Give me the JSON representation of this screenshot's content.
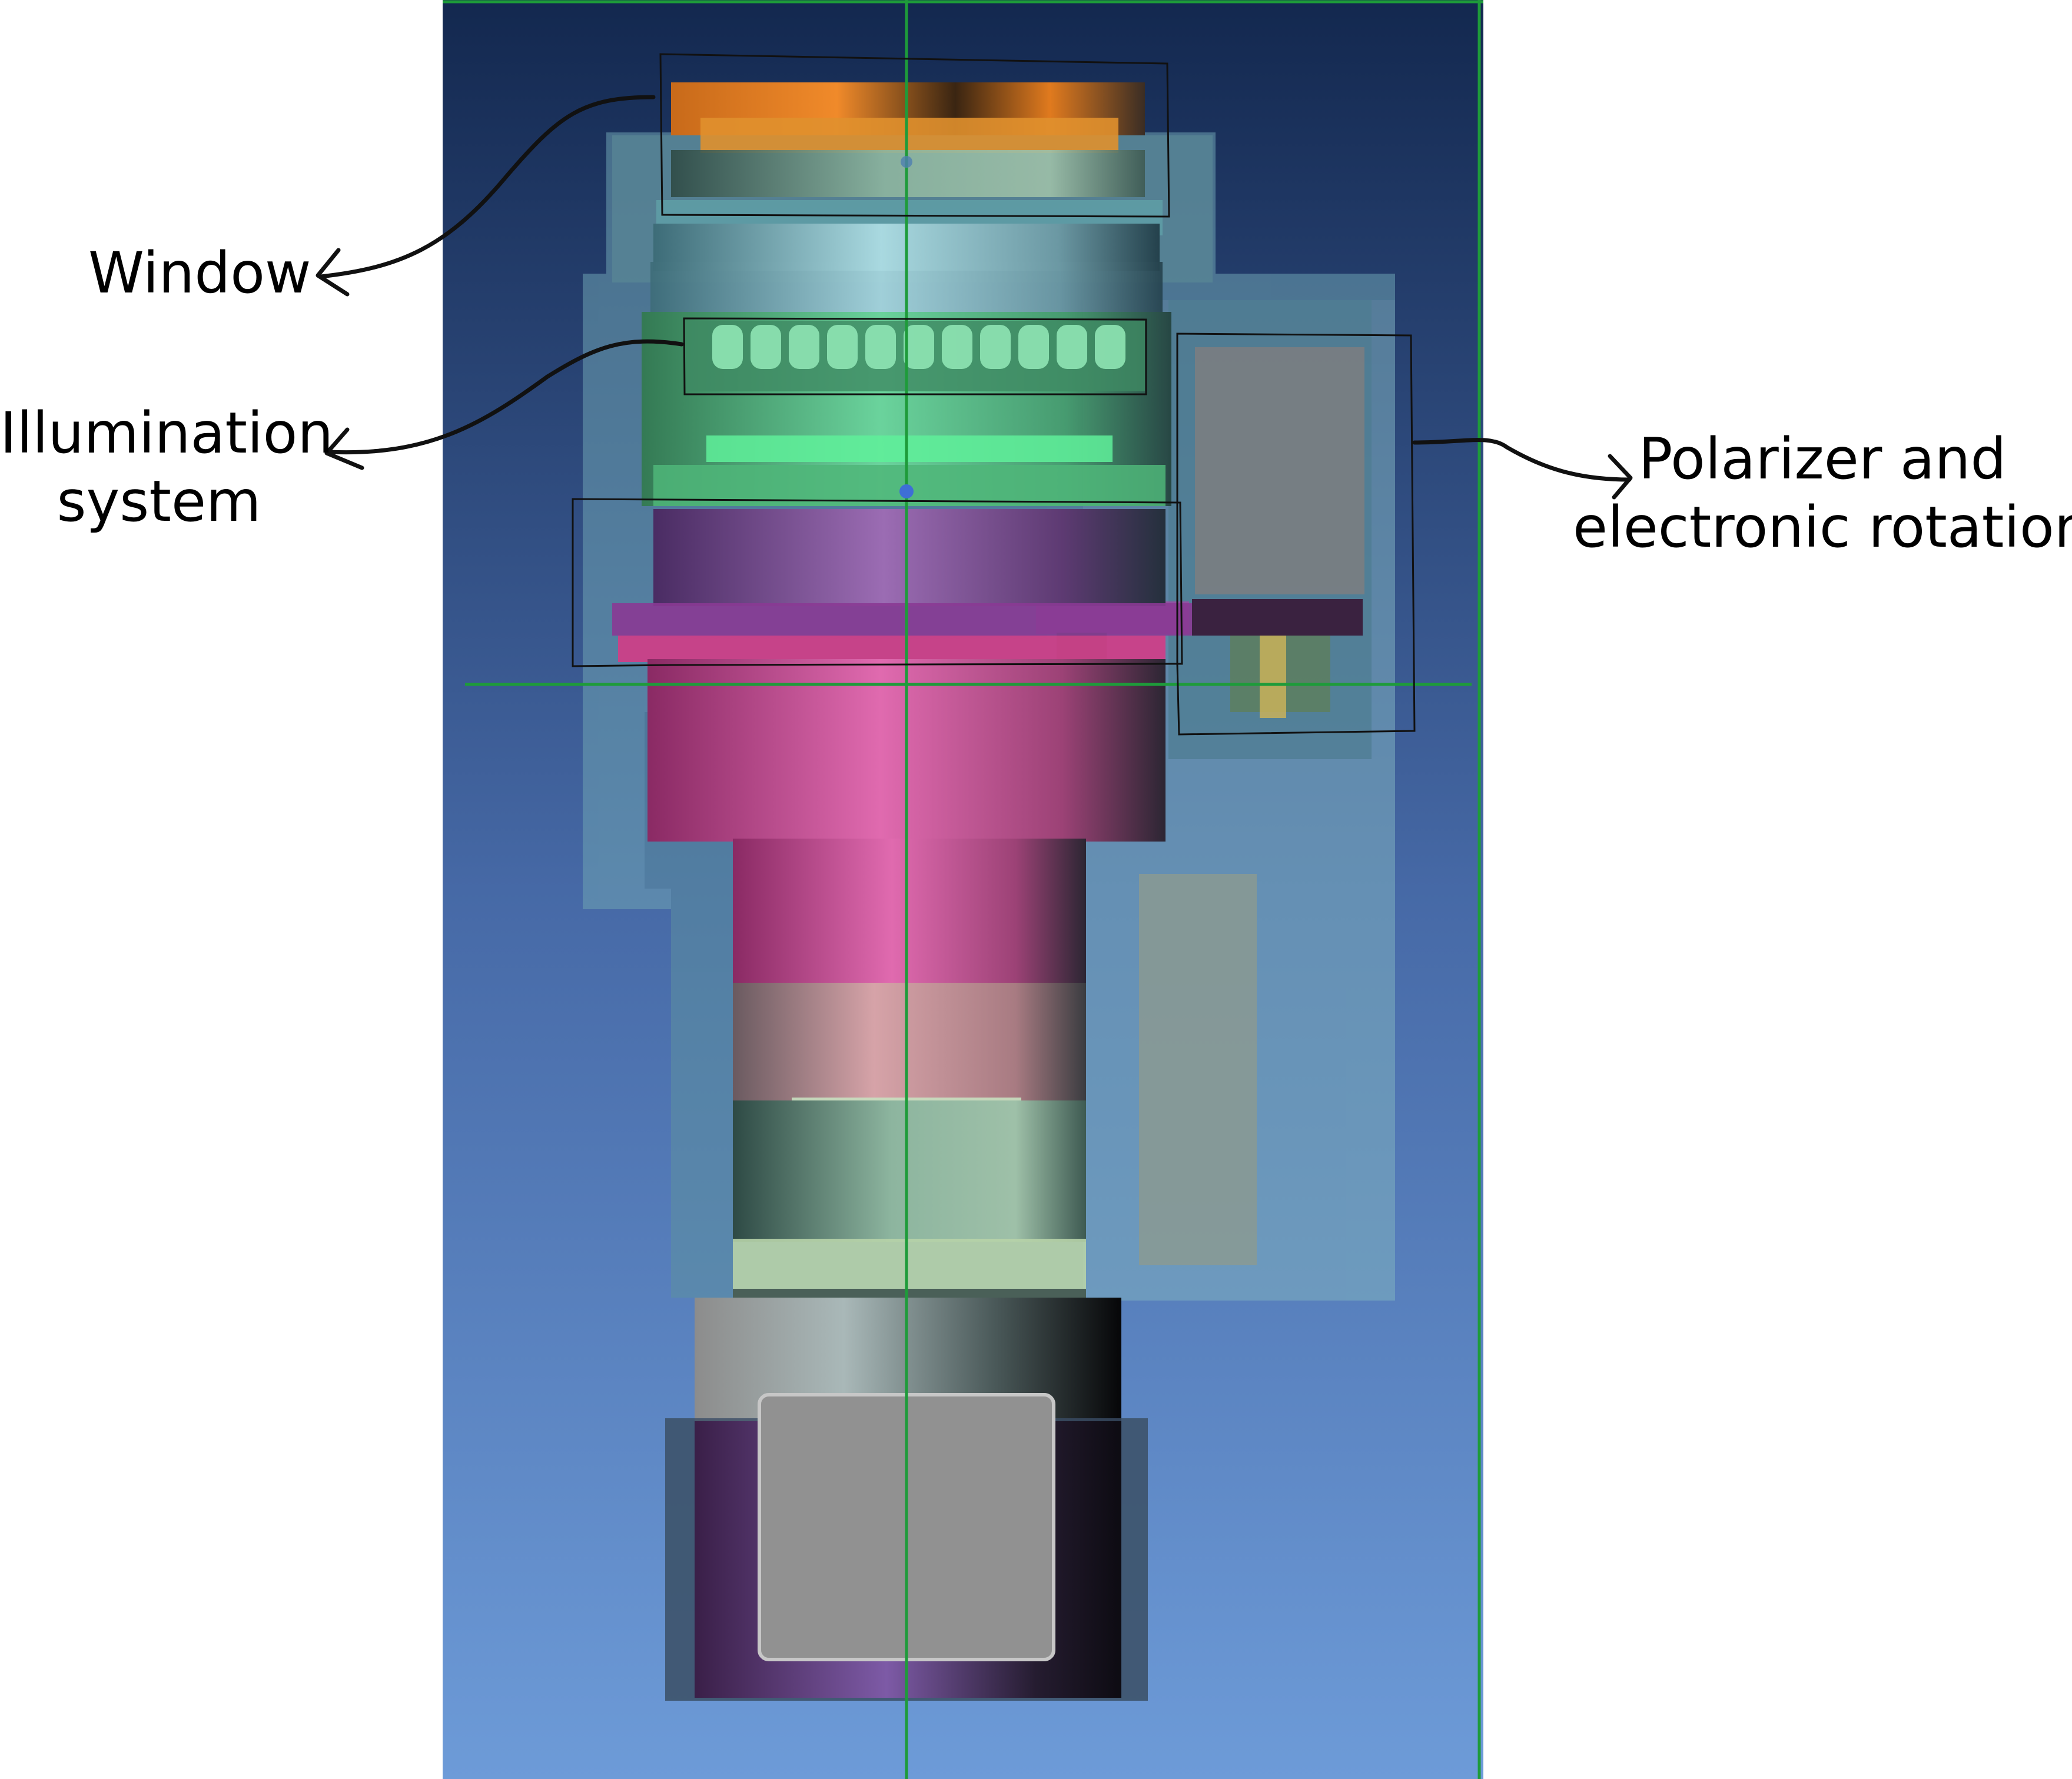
{
  "labels": {
    "window": "Window",
    "illumination_line1": "Illumination",
    "illumination_line2": "system",
    "polarizer_line1": "Polarizer and",
    "polarizer_line2": "electronic rotation"
  },
  "colors": {
    "background_top": "#14284f",
    "background_bottom": "#6d9bd8",
    "window_orange": "#e07a1e",
    "illumination_green": "#5fd68a",
    "polarizer_purple": "#8a5aa8",
    "magenta_body": "#d8559e",
    "housing_teal": "#6ea3b3",
    "camera_grey": "#919191",
    "guide_line_green": "#1e9b3a",
    "outline_black": "#111111"
  }
}
